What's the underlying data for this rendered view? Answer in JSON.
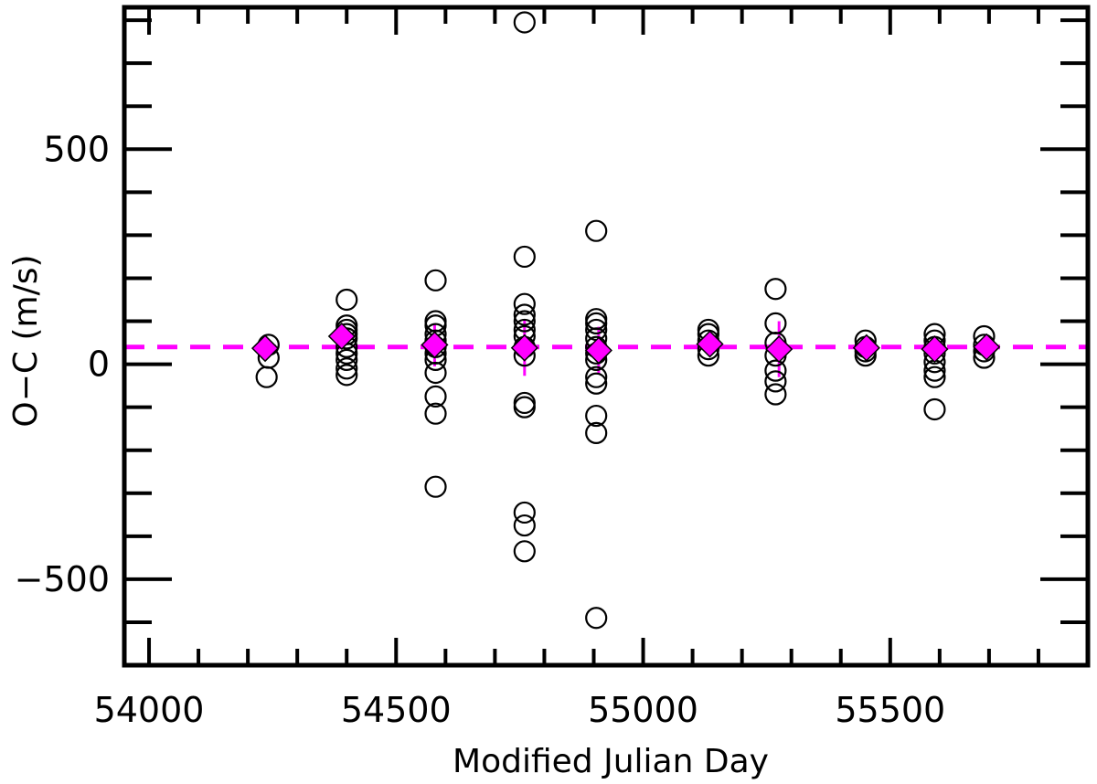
{
  "chart_data": {
    "type": "scatter",
    "title": "",
    "xlabel": "Modified Julian Day",
    "ylabel": "O−C (m/s)",
    "xlim": [
      53950,
      55900
    ],
    "ylim": [
      -700,
      830
    ],
    "x_ticks": [
      54000,
      54500,
      55000,
      55500
    ],
    "x_tick_labels": [
      "54000",
      "54500",
      "55000",
      "55500"
    ],
    "x_minor_step": 100,
    "y_ticks": [
      -500,
      0,
      500
    ],
    "y_tick_labels": [
      "−500",
      "0",
      "500"
    ],
    "y_minor_step": 100,
    "grid": false,
    "reference_line": {
      "y": 40,
      "style": "dashed",
      "color": "#ff00ff"
    },
    "series": [
      {
        "marker": "open-circle",
        "color": "#000000",
        "points": [
          [
            54242,
            45
          ],
          [
            54242,
            15
          ],
          [
            54238,
            -30
          ],
          [
            54400,
            150
          ],
          [
            54400,
            90
          ],
          [
            54400,
            80
          ],
          [
            54400,
            70
          ],
          [
            54400,
            60
          ],
          [
            54400,
            40
          ],
          [
            54400,
            25
          ],
          [
            54400,
            10
          ],
          [
            54400,
            -10
          ],
          [
            54400,
            -25
          ],
          [
            54580,
            195
          ],
          [
            54580,
            100
          ],
          [
            54580,
            90
          ],
          [
            54580,
            70
          ],
          [
            54580,
            55
          ],
          [
            54580,
            40
          ],
          [
            54580,
            25
          ],
          [
            54580,
            10
          ],
          [
            54580,
            -20
          ],
          [
            54580,
            -75
          ],
          [
            54580,
            -115
          ],
          [
            54580,
            -285
          ],
          [
            54760,
            795
          ],
          [
            54760,
            250
          ],
          [
            54760,
            140
          ],
          [
            54760,
            115
          ],
          [
            54760,
            100
          ],
          [
            54760,
            80
          ],
          [
            54760,
            65
          ],
          [
            54760,
            40
          ],
          [
            54760,
            20
          ],
          [
            54760,
            -90
          ],
          [
            54760,
            -100
          ],
          [
            54760,
            -345
          ],
          [
            54760,
            -375
          ],
          [
            54760,
            -435
          ],
          [
            54905,
            310
          ],
          [
            54905,
            105
          ],
          [
            54905,
            95
          ],
          [
            54905,
            80
          ],
          [
            54905,
            60
          ],
          [
            54905,
            40
          ],
          [
            54905,
            25
          ],
          [
            54905,
            10
          ],
          [
            54905,
            -30
          ],
          [
            54905,
            -45
          ],
          [
            54905,
            -120
          ],
          [
            54905,
            -160
          ],
          [
            54905,
            -590
          ],
          [
            55132,
            80
          ],
          [
            55132,
            70
          ],
          [
            55132,
            55
          ],
          [
            55132,
            35
          ],
          [
            55132,
            20
          ],
          [
            55268,
            175
          ],
          [
            55268,
            95
          ],
          [
            55268,
            50
          ],
          [
            55268,
            20
          ],
          [
            55268,
            -15
          ],
          [
            55268,
            -40
          ],
          [
            55268,
            -70
          ],
          [
            55450,
            55
          ],
          [
            55450,
            40
          ],
          [
            55450,
            30
          ],
          [
            55450,
            20
          ],
          [
            55590,
            70
          ],
          [
            55590,
            55
          ],
          [
            55590,
            40
          ],
          [
            55590,
            25
          ],
          [
            55590,
            5
          ],
          [
            55590,
            -15
          ],
          [
            55590,
            -30
          ],
          [
            55590,
            -105
          ],
          [
            55690,
            65
          ],
          [
            55690,
            45
          ],
          [
            55690,
            30
          ],
          [
            55690,
            15
          ]
        ]
      },
      {
        "marker": "filled-diamond",
        "color": "#ff00ff",
        "points": [
          [
            54235,
            37,
            0
          ],
          [
            54390,
            65,
            20
          ],
          [
            54578,
            45,
            50
          ],
          [
            54760,
            38,
            65
          ],
          [
            54910,
            32,
            55
          ],
          [
            55135,
            47,
            15
          ],
          [
            55275,
            35,
            65
          ],
          [
            55452,
            38,
            10
          ],
          [
            55590,
            35,
            20
          ],
          [
            55695,
            40,
            10
          ]
        ]
      }
    ]
  }
}
